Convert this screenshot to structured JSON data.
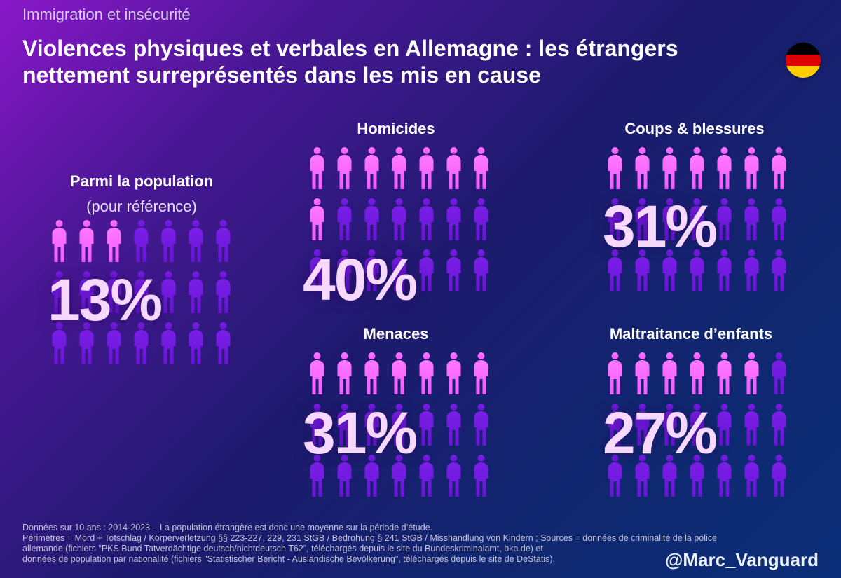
{
  "header": {
    "kicker": "Immigration et insécurité",
    "title": "Violences physiques et verbales en Allemagne : les étrangers nettement surreprésentés dans les mis en cause"
  },
  "flag": {
    "icon": "germany-flag-icon",
    "colors": [
      "#000000",
      "#dd0000",
      "#ffce00"
    ]
  },
  "colors": {
    "highlight": "#f25bff",
    "base": "#6a14d8"
  },
  "chart_data": {
    "type": "pictogram",
    "icons_per_row": 7,
    "rows": 3,
    "unit": "%",
    "panels": [
      {
        "key": "population",
        "title": "Parmi la population",
        "subtitle": "(pour référence)",
        "label": "13%",
        "value": 13
      },
      {
        "key": "homicides",
        "title": "Homicides",
        "label": "40%",
        "value": 40
      },
      {
        "key": "coups",
        "title": "Coups & blessures",
        "label": "31%",
        "value": 31
      },
      {
        "key": "menaces",
        "title": "Menaces",
        "label": "31%",
        "value": 31
      },
      {
        "key": "maltraitance",
        "title": "Maltraitance d’enfants",
        "label": "27%",
        "value": 27
      }
    ]
  },
  "footer": {
    "lines": [
      "Données sur 10 ans : 2014-2023 – La population étrangère est donc une moyenne sur la période d’étude.",
      "Périmètres = Mord + Totschlag / Körperverletzung §§ 223-227, 229, 231 StGB / Bedrohung § 241 StGB / Misshandlung von Kindern ; Sources = données de criminalité de la police",
      "allemande (fichiers \"PKS Bund Tatverdächtige deutsch/nichtdeutsch T62\", téléchargés depuis le site du Bundeskriminalamt, bka.de) et",
      "données de population par nationalité (fichiers \"Statistischer Bericht - Ausländische Bevölkerung\", téléchargés depuis le site de DeStatis)."
    ],
    "handle": "@Marc_Vanguard"
  }
}
